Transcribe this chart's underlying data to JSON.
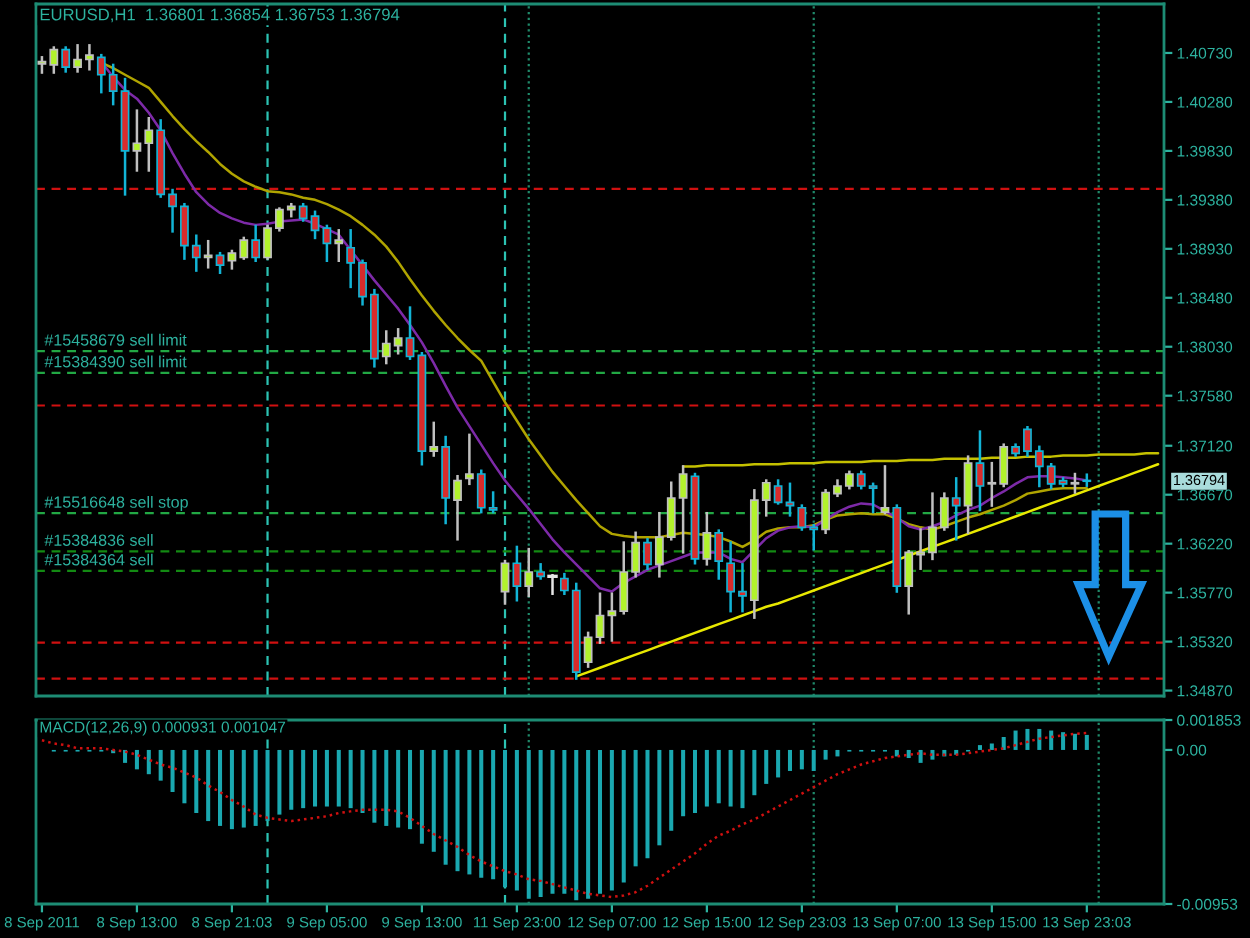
{
  "chart_data": [
    {
      "type": "candlestick",
      "title": "EURUSD,H1  1.36801 1.36854 1.36753 1.36794",
      "categories": [
        null,
        null,
        null,
        null,
        null,
        null,
        null,
        null,
        null,
        null,
        null,
        null,
        null,
        null,
        null,
        null,
        null,
        null,
        null,
        null,
        null,
        null,
        null,
        null,
        null,
        null,
        null,
        null,
        null,
        null,
        null,
        null,
        null,
        null,
        null,
        null,
        null,
        null,
        null,
        null,
        null,
        null,
        null,
        null,
        null,
        null,
        null,
        null,
        null,
        null,
        null,
        null,
        null,
        null,
        null,
        null,
        null,
        null,
        null,
        null,
        null,
        null,
        null,
        null,
        null,
        null,
        null,
        null,
        null,
        null,
        null,
        null,
        null,
        null,
        null,
        null,
        null,
        null,
        null,
        null,
        null,
        null,
        null,
        null,
        null,
        null,
        null,
        null,
        null,
        null,
        null,
        null,
        null,
        null,
        null
      ],
      "ohlc": [
        [
          1.4063,
          1.4069,
          1.4055,
          1.4065
        ],
        [
          1.4062,
          1.4078,
          1.4055,
          1.4076
        ],
        [
          1.4076,
          1.4078,
          1.4056,
          1.406
        ],
        [
          1.406,
          1.408,
          1.4056,
          1.4067
        ],
        [
          1.4067,
          1.408,
          1.4058,
          1.4071
        ],
        [
          1.4069,
          1.4071,
          1.4037,
          1.4053
        ],
        [
          1.4053,
          1.4062,
          1.4026,
          1.4038
        ],
        [
          1.4038,
          1.4049,
          1.3943,
          1.3983
        ],
        [
          1.3983,
          1.402,
          1.3965,
          1.399
        ],
        [
          1.399,
          1.4013,
          1.3965,
          1.4002
        ],
        [
          1.4002,
          1.4011,
          1.3941,
          1.3943
        ],
        [
          1.3943,
          1.3947,
          1.3909,
          1.3932
        ],
        [
          1.3932,
          1.3934,
          1.3884,
          1.3896
        ],
        [
          1.3896,
          1.3905,
          1.3873,
          1.3885
        ],
        [
          1.3885,
          1.39,
          1.3876,
          1.3887
        ],
        [
          1.3887,
          1.3889,
          1.3871,
          1.3878
        ],
        [
          1.3882,
          1.3891,
          1.3875,
          1.3889
        ],
        [
          1.3885,
          1.3903,
          1.3884,
          1.3901
        ],
        [
          1.3901,
          1.3914,
          1.3882,
          1.3885
        ],
        [
          1.3885,
          1.3914,
          1.3884,
          1.3912
        ],
        [
          1.3912,
          1.393,
          1.391,
          1.3929
        ],
        [
          1.3929,
          1.3934,
          1.3923,
          1.3932
        ],
        [
          1.3932,
          1.3934,
          1.3919,
          1.3921
        ],
        [
          1.3923,
          1.3927,
          1.3903,
          1.391
        ],
        [
          1.3912,
          1.3914,
          1.3882,
          1.3898
        ],
        [
          1.3898,
          1.391,
          1.3882,
          1.3901
        ],
        [
          1.3894,
          1.391,
          1.3858,
          1.388
        ],
        [
          1.388,
          1.3882,
          1.3842,
          1.3849
        ],
        [
          1.3851,
          1.3855,
          1.3785,
          1.3792
        ],
        [
          1.3794,
          1.3817,
          1.3788,
          1.3806
        ],
        [
          1.3804,
          1.3819,
          1.3797,
          1.3811
        ],
        [
          1.3811,
          1.3839,
          1.3792,
          1.3794
        ],
        [
          1.3795,
          1.3797,
          1.3695,
          1.3707
        ],
        [
          1.3707,
          1.3733,
          1.3703,
          1.3711
        ],
        [
          1.3711,
          1.372,
          1.3641,
          1.3664
        ],
        [
          1.3662,
          1.3684,
          1.3626,
          1.368
        ],
        [
          1.3682,
          1.3722,
          1.3677,
          1.3686
        ],
        [
          1.3686,
          1.3689,
          1.3651,
          1.3655
        ],
        [
          1.3655,
          1.3669,
          1.3651,
          1.3653
        ],
        [
          1.3578,
          1.3606,
          1.3567,
          1.3604
        ],
        [
          1.3604,
          1.3619,
          1.357,
          1.3583
        ],
        [
          1.3583,
          1.3617,
          1.3574,
          1.3596
        ],
        [
          1.3596,
          1.3603,
          1.359,
          1.3592
        ],
        [
          1.3592,
          1.3593,
          1.3576,
          1.3592
        ],
        [
          1.359,
          1.3594,
          1.3576,
          1.3579
        ],
        [
          1.3579,
          1.3585,
          1.3498,
          1.3504
        ],
        [
          1.3513,
          1.354,
          1.3509,
          1.3536
        ],
        [
          1.3536,
          1.3576,
          1.3531,
          1.3556
        ],
        [
          1.3556,
          1.3576,
          1.3533,
          1.356
        ],
        [
          1.356,
          1.3623,
          1.3558,
          1.3596
        ],
        [
          1.3596,
          1.3632,
          1.3592,
          1.3623
        ],
        [
          1.3623,
          1.3626,
          1.3599,
          1.3603
        ],
        [
          1.3603,
          1.365,
          1.3592,
          1.3628
        ],
        [
          1.3628,
          1.3678,
          1.3626,
          1.3664
        ],
        [
          1.3664,
          1.3693,
          1.3614,
          1.3686
        ],
        [
          1.3684,
          1.3686,
          1.3604,
          1.3608
        ],
        [
          1.3608,
          1.365,
          1.3603,
          1.3632
        ],
        [
          1.3632,
          1.3634,
          1.359,
          1.3606
        ],
        [
          1.3604,
          1.3623,
          1.356,
          1.3578
        ],
        [
          1.3578,
          1.3603,
          1.356,
          1.3574
        ],
        [
          1.357,
          1.3671,
          1.3554,
          1.3662
        ],
        [
          1.3662,
          1.368,
          1.3648,
          1.3678
        ],
        [
          1.3675,
          1.368,
          1.3659,
          1.366
        ],
        [
          1.366,
          1.3677,
          1.3648,
          1.3657
        ],
        [
          1.3655,
          1.3657,
          1.3635,
          1.3637
        ],
        [
          1.3637,
          1.3639,
          1.3617,
          1.3635
        ],
        [
          1.3635,
          1.3671,
          1.3632,
          1.3669
        ],
        [
          1.3668,
          1.368,
          1.3666,
          1.3675
        ],
        [
          1.3675,
          1.3688,
          1.3673,
          1.3686
        ],
        [
          1.3686,
          1.3688,
          1.3673,
          1.3675
        ],
        [
          1.3675,
          1.3677,
          1.3651,
          1.3673
        ],
        [
          1.3651,
          1.3693,
          1.365,
          1.3655
        ],
        [
          1.3655,
          1.3657,
          1.3578,
          1.3583
        ],
        [
          1.3583,
          1.3615,
          1.3558,
          1.3614
        ],
        [
          1.3612,
          1.3635,
          1.3599,
          1.3614
        ],
        [
          1.3614,
          1.3668,
          1.3608,
          1.3637
        ],
        [
          1.3637,
          1.3668,
          1.3635,
          1.3664
        ],
        [
          1.3664,
          1.3682,
          1.3626,
          1.3657
        ],
        [
          1.3657,
          1.3702,
          1.3632,
          1.3696
        ],
        [
          1.3696,
          1.3725,
          1.3653,
          1.3675
        ],
        [
          1.3677,
          1.3696,
          1.3657,
          1.3678
        ],
        [
          1.3677,
          1.3713,
          1.3675,
          1.3711
        ],
        [
          1.3711,
          1.3713,
          1.3703,
          1.3705
        ],
        [
          1.3727,
          1.3729,
          1.3703,
          1.3707
        ],
        [
          1.3707,
          1.3711,
          1.3675,
          1.3693
        ],
        [
          1.3693,
          1.3695,
          1.3673,
          1.3677
        ],
        [
          1.368,
          1.3682,
          1.3675,
          1.3677
        ],
        [
          1.3677,
          1.3686,
          1.3669,
          1.3678
        ],
        [
          1.36801,
          1.36854,
          1.36753,
          1.36794
        ],
        null,
        null,
        null,
        null,
        null,
        null
      ],
      "colors": [
        "#b2f22c",
        "#b2f22c",
        "#d92b2b",
        "#b2f22c",
        "#b2f22c",
        "#d92b2b",
        "#d92b2b",
        "#d92b2b",
        "#b2f22c",
        "#b2f22c",
        "#d92b2b",
        "#d92b2b",
        "#d92b2b",
        "#d92b2b",
        "#b2f22c",
        "#d92b2b",
        "#b2f22c",
        "#b2f22c",
        "#d92b2b",
        "#b2f22c",
        "#b2f22c",
        "#b2f22c",
        "#d92b2b",
        "#d92b2b",
        "#d92b2b",
        "#b2f22c",
        "#d92b2b",
        "#d92b2b",
        "#d92b2b",
        "#b2f22c",
        "#b2f22c",
        "#d92b2b",
        "#d92b2b",
        "#b2f22c",
        "#d92b2b",
        "#b2f22c",
        "#b2f22c",
        "#d92b2b",
        "#d92b2b",
        "#b2f22c",
        "#d92b2b",
        "#b2f22c",
        "#d92b2b",
        "#e6e6e6",
        "#d92b2b",
        "#d92b2b",
        "#b2f22c",
        "#b2f22c",
        "#b2f22c",
        "#b2f22c",
        "#b2f22c",
        "#d92b2b",
        "#b2f22c",
        "#b2f22c",
        "#b2f22c",
        "#d92b2b",
        "#b2f22c",
        "#d92b2b",
        "#d92b2b",
        "#d92b2b",
        "#b2f22c",
        "#b2f22c",
        "#d92b2b",
        "#d92b2b",
        "#d92b2b",
        "#d92b2b",
        "#b2f22c",
        "#b2f22c",
        "#b2f22c",
        "#d92b2b",
        "#d92b2b",
        "#b2f22c",
        "#d92b2b",
        "#b2f22c",
        "#b2f22c",
        "#b2f22c",
        "#b2f22c",
        "#d92b2b",
        "#b2f22c",
        "#d92b2b",
        "#b2f22c",
        "#b2f22c",
        "#d92b2b",
        "#d92b2b",
        "#d92b2b",
        "#d92b2b",
        "#d92b2b",
        "#b2f22c",
        "#d92b2b",
        null,
        null,
        null,
        null,
        null,
        null
      ],
      "series": [
        {
          "type": "line",
          "color": "#b0a400",
          "values": [
            null,
            null,
            null,
            null,
            null,
            1.4064,
            1.4059,
            1.4053,
            1.4047,
            1.4041,
            1.4028,
            1.4015,
            1.4003,
            1.3992,
            1.3982,
            1.3971,
            1.3962,
            1.3955,
            1.395,
            1.3946,
            1.3945,
            1.3943,
            1.394,
            1.3938,
            1.3934,
            1.3929,
            1.3923,
            1.3915,
            1.3906,
            1.3895,
            1.3881,
            1.3865,
            1.385,
            1.3836,
            1.3823,
            1.3811,
            1.38,
            1.379,
            1.3771,
            1.3752,
            1.3735,
            1.3718,
            1.3703,
            1.3688,
            1.3675,
            1.3662,
            1.365,
            1.3638,
            1.3631,
            1.3629,
            1.3628,
            1.3628,
            1.3628,
            1.363,
            1.3632,
            1.3631,
            1.363,
            1.3628,
            1.3624,
            1.3619,
            1.3625,
            1.3633,
            1.3636,
            1.3637,
            1.3637,
            1.3639,
            1.3644,
            1.3648,
            1.3649,
            1.365,
            1.3649,
            1.3649,
            1.3645,
            1.364,
            1.3637,
            1.3635,
            1.3638,
            1.3642,
            1.3646,
            1.3649,
            1.3653,
            1.3657,
            1.3662,
            1.3668,
            1.367,
            1.3672,
            1.3673,
            1.3673,
            1.3673,
            null,
            null,
            null,
            null,
            null,
            null
          ]
        },
        {
          "type": "line",
          "color": "#7d2aa8",
          "values": [
            null,
            null,
            null,
            null,
            null,
            1.4065,
            1.4051,
            1.4039,
            1.4031,
            1.4018,
            1.4002,
            1.3981,
            1.3962,
            1.3945,
            1.3934,
            1.3926,
            1.3921,
            1.3917,
            1.3915,
            1.3916,
            1.3918,
            1.3919,
            1.392,
            1.3916,
            1.3911,
            1.3906,
            1.3892,
            1.3878,
            1.3864,
            1.3851,
            1.3838,
            1.3823,
            1.3807,
            1.3788,
            1.3767,
            1.3747,
            1.373,
            1.3713,
            1.3696,
            1.368,
            1.3667,
            1.3654,
            1.364,
            1.3626,
            1.3614,
            1.3603,
            1.3592,
            1.3581,
            1.3578,
            1.3586,
            1.3592,
            1.3598,
            1.3602,
            1.3606,
            1.361,
            1.3614,
            1.3614,
            1.3614,
            1.3608,
            1.3605,
            1.3616,
            1.3627,
            1.3634,
            1.3637,
            1.3638,
            1.3637,
            1.3644,
            1.3651,
            1.3656,
            1.3659,
            1.3658,
            1.3652,
            1.3646,
            1.3638,
            1.3635,
            1.3638,
            1.3642,
            1.3648,
            1.3653,
            1.3657,
            1.3664,
            1.367,
            1.3677,
            1.3683,
            1.3684,
            1.3684,
            1.3683,
            1.3682,
            1.368,
            null,
            null,
            null,
            null,
            null,
            null
          ]
        },
        {
          "type": "line",
          "color": "#c4c000",
          "values": [
            null,
            null,
            null,
            null,
            null,
            null,
            null,
            null,
            null,
            null,
            null,
            null,
            null,
            null,
            null,
            null,
            null,
            null,
            null,
            null,
            null,
            null,
            null,
            null,
            null,
            null,
            null,
            null,
            null,
            null,
            null,
            null,
            null,
            null,
            null,
            null,
            null,
            null,
            null,
            null,
            null,
            null,
            null,
            null,
            null,
            null,
            null,
            null,
            null,
            null,
            null,
            null,
            null,
            null,
            1.3693,
            1.3693,
            1.3694,
            1.3694,
            1.3694,
            1.3694,
            1.3695,
            1.3695,
            1.3695,
            1.3696,
            1.3696,
            1.3696,
            1.3697,
            1.3697,
            1.3697,
            1.3697,
            1.3698,
            1.3698,
            1.3698,
            1.3699,
            1.3699,
            1.3699,
            1.37,
            1.37,
            1.37,
            1.37,
            1.3701,
            1.3701,
            1.3701,
            1.3702,
            1.3702,
            1.3702,
            1.3703,
            1.3703,
            1.3703,
            1.3704,
            1.3704,
            1.3704,
            1.3704,
            1.3705,
            1.3705
          ]
        },
        {
          "type": "line",
          "color": "#e8e800",
          "values": [
            null,
            null,
            null,
            null,
            null,
            null,
            null,
            null,
            null,
            null,
            null,
            null,
            null,
            null,
            null,
            null,
            null,
            null,
            null,
            null,
            null,
            null,
            null,
            null,
            null,
            null,
            null,
            null,
            null,
            null,
            null,
            null,
            null,
            null,
            null,
            null,
            null,
            null,
            null,
            null,
            null,
            null,
            null,
            null,
            null,
            1.35,
            1.3504,
            1.3508,
            1.3512,
            1.3516,
            1.352,
            1.3524,
            1.3528,
            1.3532,
            1.3536,
            1.354,
            1.3544,
            1.3548,
            1.3552,
            1.3556,
            1.356,
            1.3564,
            1.3567,
            1.3571,
            1.3575,
            1.3579,
            1.3583,
            1.3587,
            1.3591,
            1.3595,
            1.3599,
            1.3603,
            1.3607,
            1.3611,
            1.3615,
            1.3619,
            1.3623,
            1.3627,
            1.3631,
            1.3635,
            1.3639,
            1.3643,
            1.3647,
            1.3651,
            1.3655,
            1.3659,
            1.3663,
            1.3667,
            1.3671,
            1.3675,
            1.3679,
            1.3683,
            1.3687,
            1.3691,
            1.3695
          ]
        }
      ],
      "ylim": [
        1.3482,
        1.4118
      ],
      "yticks": [
        {
          "value": 1.4073,
          "label": "1.40730"
        },
        {
          "value": 1.4028,
          "label": "1.40280"
        },
        {
          "value": 1.3983,
          "label": "1.39830"
        },
        {
          "value": 1.3938,
          "label": "1.39380"
        },
        {
          "value": 1.3893,
          "label": "1.38930"
        },
        {
          "value": 1.3848,
          "label": "1.38480"
        },
        {
          "value": 1.3803,
          "label": "1.38030"
        },
        {
          "value": 1.3758,
          "label": "1.37580"
        },
        {
          "value": 1.3712,
          "label": "1.37120"
        },
        {
          "value": 1.3667,
          "label": "1.36670"
        },
        {
          "value": 1.3622,
          "label": "1.36220"
        },
        {
          "value": 1.3577,
          "label": "1.35770"
        },
        {
          "value": 1.3532,
          "label": "1.35320"
        },
        {
          "value": 1.3487,
          "label": "1.34870"
        }
      ],
      "tick_labels": "y",
      "grid": "x",
      "ref_lines": [
        {
          "axis": "y",
          "value": 1.3948,
          "color": "#d01010",
          "line_style": "dashed"
        },
        {
          "axis": "y",
          "value": 1.3799,
          "label": "#15458679 sell limit",
          "color": "#22a844",
          "line_style": "dashed"
        },
        {
          "axis": "y",
          "value": 1.3779,
          "label": "#15384390 sell limit",
          "color": "#22a844",
          "line_style": "dashed"
        },
        {
          "axis": "y",
          "value": 1.3749,
          "color": "#d01010",
          "line_style": "dashed"
        },
        {
          "axis": "y",
          "value": 1.365,
          "label": "#15516648 sell stop",
          "color": "#22a844",
          "line_style": "dashed"
        },
        {
          "axis": "y",
          "value": 1.3615,
          "label": "#15384836 sell",
          "color": "#138a13",
          "line_style": "dashed"
        },
        {
          "axis": "y",
          "value": 1.3597,
          "label": "#15384364 sell",
          "color": "#138a13",
          "line_style": "dashed"
        },
        {
          "axis": "y",
          "value": 1.3531,
          "color": "#d01010",
          "line_style": "dashed"
        },
        {
          "axis": "y",
          "value": 1.3498,
          "color": "#d01010",
          "line_style": "dashed"
        }
      ],
      "annotations": [
        "1.36794"
      ]
    },
    {
      "type": "bar",
      "title": "MACD(12,26,9) 0.000931 0.001047",
      "categories": [
        "8 Sep 2011",
        null,
        null,
        null,
        null,
        null,
        null,
        null,
        "8 Sep 13:00",
        null,
        null,
        null,
        null,
        null,
        null,
        null,
        "8 Sep 21:03",
        null,
        null,
        null,
        null,
        null,
        null,
        null,
        "9 Sep 05:00",
        null,
        null,
        null,
        null,
        null,
        null,
        null,
        "9 Sep 13:00",
        null,
        null,
        null,
        null,
        null,
        null,
        null,
        "11 Sep 23:00",
        null,
        null,
        null,
        null,
        null,
        null,
        null,
        "12 Sep 07:00",
        null,
        null,
        null,
        null,
        null,
        null,
        null,
        "12 Sep 15:00",
        null,
        null,
        null,
        null,
        null,
        null,
        null,
        "12 Sep 23:03",
        null,
        null,
        null,
        null,
        null,
        null,
        null,
        "13 Sep 07:00",
        null,
        null,
        null,
        null,
        null,
        null,
        null,
        "13 Sep 15:00",
        null,
        null,
        null,
        null,
        null,
        null,
        null,
        "13 Sep 23:03",
        null,
        null,
        null,
        null,
        null,
        null
      ],
      "series": [
        {
          "color": "#1aa8b0",
          "values": [
            0.0,
            -0.0001,
            -0.0001,
            -0.0001,
            -0.0001,
            -0.0001,
            -0.0002,
            -0.0008,
            -0.0012,
            -0.0015,
            -0.0019,
            -0.0026,
            -0.0033,
            -0.0039,
            -0.0044,
            -0.0047,
            -0.0049,
            -0.0048,
            -0.0047,
            -0.0044,
            -0.004,
            -0.0037,
            -0.0036,
            -0.0035,
            -0.0035,
            -0.0035,
            -0.0036,
            -0.0039,
            -0.0045,
            -0.0047,
            -0.0048,
            -0.0049,
            -0.0058,
            -0.0063,
            -0.0071,
            -0.0075,
            -0.0077,
            -0.0079,
            -0.008,
            -0.0085,
            -0.0087,
            -0.0092,
            -0.0091,
            -0.0089,
            -0.0089,
            -0.0093,
            -0.0092,
            -0.0089,
            -0.0087,
            -0.0082,
            -0.0072,
            -0.0067,
            -0.0059,
            -0.005,
            -0.0041,
            -0.0039,
            -0.0035,
            -0.0033,
            -0.0035,
            -0.0036,
            -0.0028,
            -0.0021,
            -0.0017,
            -0.0013,
            -0.0012,
            -0.0013,
            -0.0006,
            -0.0004,
            -0.0001,
            -0.0001,
            -0.0001,
            -0.0001,
            -0.0004,
            -0.0005,
            -0.0008,
            -0.0006,
            -0.0004,
            -0.0003,
            -0.0001,
            0.0003,
            0.0004,
            0.0008,
            0.0012,
            0.0013,
            0.0013,
            0.0012,
            0.0011,
            0.001,
            0.000931,
            null,
            null,
            null,
            null,
            null,
            null
          ]
        },
        {
          "type": "line",
          "color": "#d01010",
          "line_style": "dotted",
          "values": [
            0.0006,
            0.0004,
            0.0003,
            0.0001,
            0.0001,
            0.0001,
            0.0,
            -0.0001,
            -0.0003,
            -0.0006,
            -0.0009,
            -0.0011,
            -0.0014,
            -0.0017,
            -0.0022,
            -0.0026,
            -0.0031,
            -0.0035,
            -0.004,
            -0.0042,
            -0.0043,
            -0.0044,
            -0.0043,
            -0.0042,
            -0.0041,
            -0.0039,
            -0.0038,
            -0.0037,
            -0.0037,
            -0.0037,
            -0.0038,
            -0.0042,
            -0.0047,
            -0.0052,
            -0.0056,
            -0.006,
            -0.0065,
            -0.0069,
            -0.0072,
            -0.0075,
            -0.0077,
            -0.008,
            -0.0081,
            -0.0083,
            -0.0085,
            -0.0087,
            -0.0089,
            -0.009,
            -0.0091,
            -0.009,
            -0.0088,
            -0.0084,
            -0.0079,
            -0.0074,
            -0.0069,
            -0.0064,
            -0.0058,
            -0.0053,
            -0.005,
            -0.0046,
            -0.0043,
            -0.0039,
            -0.0035,
            -0.0031,
            -0.0027,
            -0.0023,
            -0.0019,
            -0.0015,
            -0.0012,
            -0.0009,
            -0.0007,
            -0.0005,
            -0.0004,
            -0.0003,
            -0.0002,
            -0.0003,
            -0.0003,
            -0.0003,
            -0.0002,
            -0.0001,
            0.0,
            0.0001,
            0.0003,
            0.0005,
            0.0007,
            0.0008,
            0.0009,
            0.001,
            0.001047,
            null,
            null,
            null,
            null,
            null,
            null
          ]
        }
      ],
      "ylim": [
        -0.00953,
        0.001853
      ],
      "yticks": [
        0.001853,
        {
          "value": 0,
          "label": "0.00"
        },
        -0.00953
      ],
      "grid": "x"
    }
  ]
}
